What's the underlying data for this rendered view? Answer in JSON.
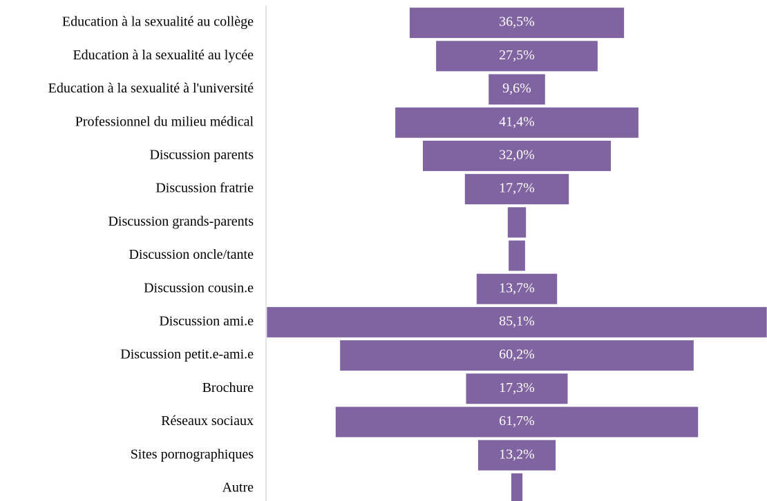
{
  "chart_data": {
    "type": "funnel",
    "categories": [
      "Education à la sexualité au collège",
      "Education à la sexualité au lycée",
      "Education à la sexualité à l'université",
      "Professionnel du milieu médical",
      "Discussion parents",
      "Discussion fratrie",
      "Discussion grands-parents",
      "Discussion oncle/tante",
      "Discussion cousin.e",
      "Discussion ami.e",
      "Discussion petit.e-ami.e",
      "Brochure",
      "Réseaux sociaux",
      "Sites pornographiques",
      "Autre"
    ],
    "values": [
      36.5,
      27.5,
      9.6,
      41.4,
      32.0,
      17.7,
      3.1,
      2.8,
      13.7,
      85.1,
      60.2,
      17.3,
      61.7,
      13.2,
      1.9
    ],
    "value_labels": [
      "36,5%",
      "27,5%",
      "9,6%",
      "41,4%",
      "32,0%",
      "17,7%",
      null,
      null,
      "13,7%",
      "85,1%",
      "60,2%",
      "17,3%",
      "61,7%",
      "13,2%",
      null
    ],
    "color": "#8064a2"
  }
}
